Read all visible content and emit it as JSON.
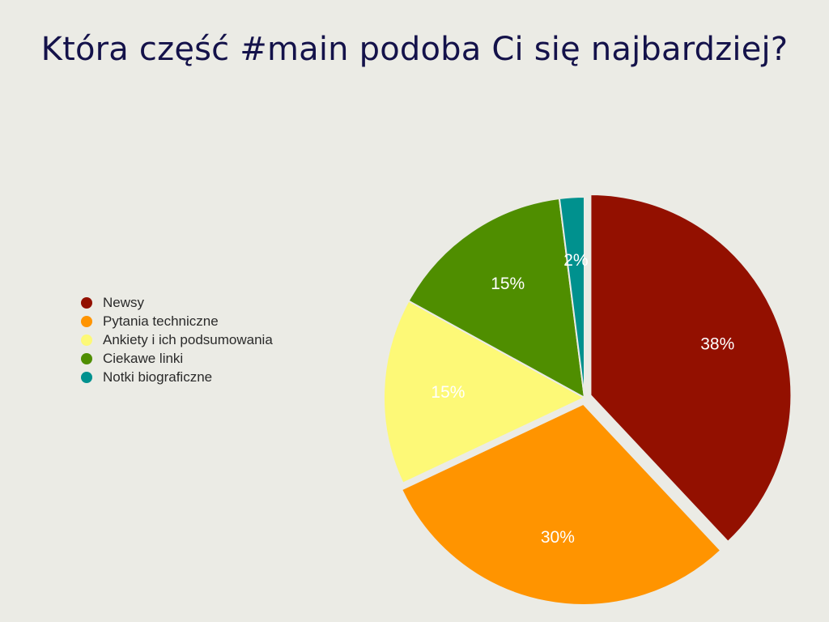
{
  "title": "Która część #main podoba Ci się najbardziej?",
  "chart_data": {
    "type": "pie",
    "title": "Która część #main podoba Ci się najbardziej?",
    "categories": [
      "Newsy",
      "Pytania techniczne",
      "Ankiety i ich podsumowania",
      "Ciekawe linki",
      "Notki biograficzne"
    ],
    "values": [
      38,
      30,
      15,
      15,
      2
    ],
    "labels": [
      "38%",
      "30%",
      "15%",
      "15%",
      "2%"
    ],
    "colors": [
      "#931000",
      "#ff9400",
      "#fdf977",
      "#4f8e00",
      "#00918e"
    ],
    "exploded": [
      true,
      true,
      false,
      false,
      false
    ],
    "legend": "left"
  }
}
